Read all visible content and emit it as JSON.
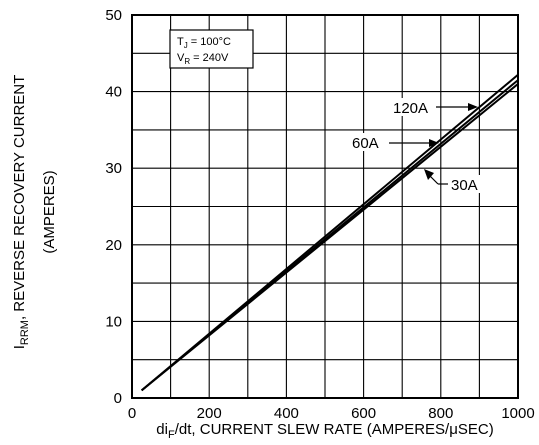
{
  "chart_data": {
    "type": "line",
    "xlabel_main": "di",
    "xlabel_sub": "F",
    "xlabel_rest": "/dt, CURRENT SLEW RATE (AMPERES/μSEC)",
    "ylabel_main": "I",
    "ylabel_sub": "RRM",
    "ylabel_rest": ", REVERSE RECOVERY CURRENT",
    "ylabel_line2": "(AMPERES)",
    "xlim": [
      0,
      1000
    ],
    "ylim": [
      0,
      50
    ],
    "x_ticks": [
      "0",
      "200",
      "400",
      "600",
      "800",
      "1000"
    ],
    "y_ticks": [
      "0",
      "10",
      "20",
      "30",
      "40",
      "50"
    ],
    "x_tick_values": [
      0,
      200,
      400,
      600,
      800,
      1000
    ],
    "y_tick_values": [
      0,
      10,
      20,
      30,
      40,
      50
    ],
    "grid": true,
    "x_grid_step": 100,
    "y_grid_step": 5,
    "conditions": {
      "tj_main": "T",
      "tj_sub": "J",
      "tj_rest": " = 100°C",
      "vr_main": "V",
      "vr_sub": "R",
      "vr_rest": " = 240V"
    },
    "series": [
      {
        "name": "120A",
        "x": [
          25,
          1000
        ],
        "y": [
          1.0,
          42.2
        ]
      },
      {
        "name": "60A",
        "x": [
          25,
          1000
        ],
        "y": [
          1.0,
          41.5
        ]
      },
      {
        "name": "30A",
        "x": [
          25,
          1000
        ],
        "y": [
          1.0,
          41.0
        ]
      }
    ],
    "annotations": [
      "120A",
      "60A",
      "30A"
    ]
  }
}
